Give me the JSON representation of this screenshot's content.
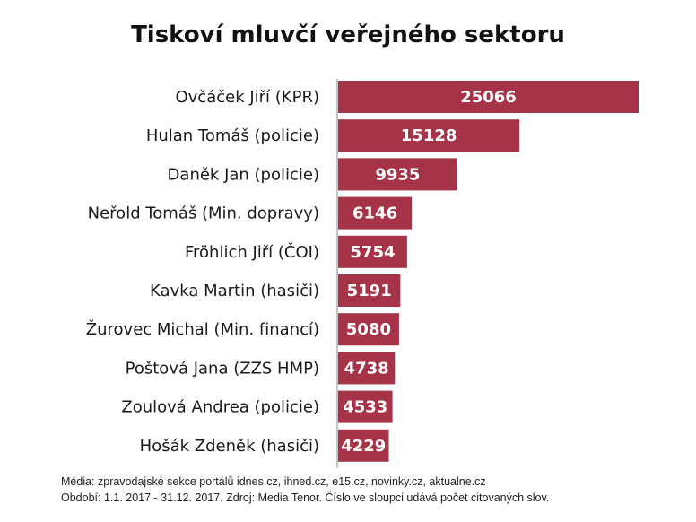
{
  "chart_data": {
    "type": "bar",
    "orientation": "horizontal",
    "title": "Tiskoví mluvčí veřejného sektoru",
    "categories": [
      "Ovčáček Jiří (KPR)",
      "Hulan Tomáš (policie)",
      "Daněk Jan (policie)",
      "Neřold Tomáš (Min. dopravy)",
      "Fröhlich Jiří (ČOI)",
      "Kavka Martin (hasiči)",
      "Žurovec Michal (Min. financí)",
      "Poštová Jana (ZZS HMP)",
      "Zoulová Andrea (policie)",
      "Hošák Zdeněk (hasiči)"
    ],
    "values": [
      25066,
      15128,
      9935,
      6146,
      5754,
      5191,
      5080,
      4738,
      4533,
      4229
    ],
    "bar_color": "#a63348",
    "value_labels": "inside-bar",
    "xlim": [
      0,
      25066
    ],
    "grid": false,
    "legend": "none"
  },
  "footnotes": {
    "line1": "Média: zpravodajské sekce portálů idnes.cz, ihned.cz, e15.cz, novinky.cz, aktualne.cz",
    "line2": "Období: 1.1. 2017 - 31.12. 2017. Zdroj: Media Tenor. Číslo ve sloupci udává počet citovaných slov."
  }
}
